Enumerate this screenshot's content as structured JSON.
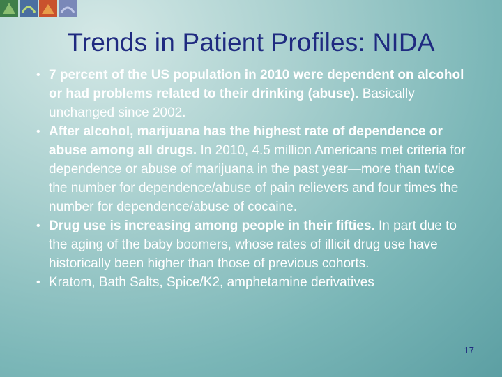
{
  "slide": {
    "title": "Trends in Patient Profiles:  NIDA",
    "bullets": [
      {
        "bold": "7 percent of the US population in 2010 were dependent on alcohol or had problems related to their drinking (abuse).",
        "text": "Basically unchanged since 2002."
      },
      {
        "bold": "After alcohol, marijuana has the highest rate of dependence or abuse among all drugs.",
        "text": "In 2010, 4.5 million Americans met criteria for dependence or abuse of marijuana in the past year—more than twice the number for dependence/abuse of pain relievers and four times the number for dependence/abuse of cocaine."
      },
      {
        "bold": "Drug use is increasing among people in their fifties.",
        "text": "In part due to the aging of the baby boomers, whose rates of illicit drug use have historically been higher than those of previous cohorts."
      },
      {
        "text": "Kratom, Bath Salts, Spice/K2, amphetamine derivatives"
      }
    ],
    "page_number": "17"
  }
}
